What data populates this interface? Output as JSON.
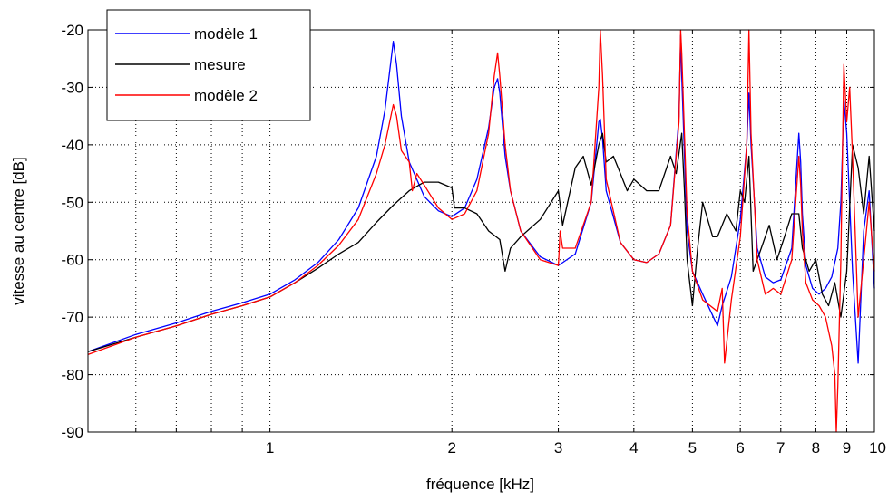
{
  "chart_data": {
    "type": "line",
    "title": "",
    "xlabel": "fréquence [kHz]",
    "ylabel": "vitesse au centre [dB]",
    "x_scale": "log",
    "xlim": [
      0.5,
      10
    ],
    "ylim": [
      -90,
      -20
    ],
    "x_ticks": [
      {
        "value": 1,
        "label": "1"
      },
      {
        "value": 2,
        "label": "2"
      },
      {
        "value": 3,
        "label": "3"
      },
      {
        "value": 4,
        "label": "4"
      },
      {
        "value": 5,
        "label": "5"
      },
      {
        "value": 6,
        "label": "6"
      },
      {
        "value": 7,
        "label": "7"
      },
      {
        "value": 8,
        "label": "8"
      },
      {
        "value": 9,
        "label": "9"
      },
      {
        "value": 10,
        "label": "10"
      }
    ],
    "x_minor_grid": [
      0.6,
      0.7,
      0.8,
      0.9
    ],
    "y_ticks": [
      {
        "value": -20,
        "label": "-20"
      },
      {
        "value": -30,
        "label": "-30"
      },
      {
        "value": -40,
        "label": "-40"
      },
      {
        "value": -50,
        "label": "-50"
      },
      {
        "value": -60,
        "label": "-60"
      },
      {
        "value": -70,
        "label": "-70"
      },
      {
        "value": -80,
        "label": "-80"
      },
      {
        "value": -90,
        "label": "-90"
      }
    ],
    "grid": true,
    "legend_position": "top-left",
    "series": [
      {
        "name": "modèle 1",
        "color": "#0000ff",
        "x": [
          0.5,
          0.6,
          0.7,
          0.8,
          0.9,
          1.0,
          1.1,
          1.2,
          1.3,
          1.4,
          1.5,
          1.55,
          1.6,
          1.62,
          1.65,
          1.7,
          1.8,
          1.9,
          2.0,
          2.1,
          2.2,
          2.3,
          2.35,
          2.38,
          2.4,
          2.45,
          2.5,
          2.6,
          2.8,
          3.0,
          3.2,
          3.4,
          3.5,
          3.52,
          3.55,
          3.6,
          3.8,
          4.0,
          4.2,
          4.4,
          4.6,
          4.75,
          4.78,
          4.8,
          4.9,
          5.0,
          5.2,
          5.5,
          5.6,
          5.8,
          6.0,
          6.15,
          6.2,
          6.25,
          6.4,
          6.6,
          6.8,
          7.0,
          7.3,
          7.5,
          7.55,
          7.6,
          7.7,
          7.9,
          8.1,
          8.3,
          8.5,
          8.7,
          8.8,
          8.85,
          8.9,
          9.0,
          9.2,
          9.4,
          9.6,
          9.8,
          10.0
        ],
        "y": [
          -76,
          -73,
          -71,
          -69,
          -67.5,
          -66,
          -63.5,
          -60.5,
          -56.5,
          -51,
          -42,
          -34,
          -22,
          -26,
          -35,
          -43,
          -49,
          -51.5,
          -52.5,
          -51,
          -46,
          -37,
          -30,
          -28.5,
          -31,
          -42,
          -48,
          -55,
          -59.5,
          -61,
          -59,
          -50,
          -36,
          -35.5,
          -39,
          -48,
          -57,
          -60,
          -60.5,
          -59,
          -54,
          -35,
          -21,
          -28,
          -55,
          -62,
          -66,
          -71.5,
          -68,
          -63,
          -53,
          -40,
          -31,
          -40,
          -58,
          -63,
          -64,
          -63.5,
          -58,
          -38,
          -43,
          -52,
          -61,
          -65,
          -66,
          -65,
          -63,
          -58,
          -50,
          -42,
          -32,
          -38,
          -62,
          -78,
          -55,
          -48,
          -65
        ]
      },
      {
        "name": "mesure",
        "color": "#000000",
        "x": [
          0.5,
          0.6,
          0.7,
          0.8,
          0.9,
          1.0,
          1.1,
          1.2,
          1.3,
          1.4,
          1.5,
          1.6,
          1.7,
          1.8,
          1.9,
          2.0,
          2.02,
          2.1,
          2.2,
          2.3,
          2.4,
          2.45,
          2.5,
          2.55,
          2.6,
          2.8,
          3.0,
          3.05,
          3.2,
          3.3,
          3.4,
          3.5,
          3.55,
          3.6,
          3.7,
          3.8,
          3.9,
          4.0,
          4.2,
          4.4,
          4.6,
          4.7,
          4.8,
          4.85,
          4.9,
          5.0,
          5.1,
          5.2,
          5.4,
          5.5,
          5.7,
          5.9,
          6.0,
          6.1,
          6.2,
          6.3,
          6.5,
          6.7,
          6.9,
          7.1,
          7.3,
          7.5,
          7.6,
          7.8,
          8.0,
          8.2,
          8.4,
          8.6,
          8.8,
          9.0,
          9.2,
          9.4,
          9.6,
          9.8,
          10.0
        ],
        "y": [
          -76,
          -73.5,
          -71.5,
          -69.5,
          -68,
          -66.5,
          -64,
          -61.5,
          -59,
          -57,
          -53.5,
          -50.5,
          -48,
          -46.5,
          -46.5,
          -47.5,
          -51,
          -51,
          -52,
          -55,
          -56.5,
          -62,
          -58,
          -57,
          -56,
          -53,
          -48,
          -54,
          -44,
          -42,
          -47,
          -40,
          -38,
          -43,
          -42,
          -45,
          -48,
          -46,
          -48,
          -48,
          -42,
          -45,
          -38,
          -48,
          -60,
          -68,
          -58,
          -50,
          -56,
          -56,
          -52,
          -55,
          -48,
          -50,
          -42,
          -62,
          -58,
          -54,
          -60,
          -56,
          -52,
          -52,
          -58,
          -62,
          -60,
          -66,
          -68,
          -64,
          -70,
          -62,
          -40,
          -44,
          -52,
          -42,
          -55
        ]
      },
      {
        "name": "modèle 2",
        "color": "#ff0000",
        "x": [
          0.5,
          0.6,
          0.7,
          0.8,
          0.9,
          1.0,
          1.1,
          1.2,
          1.3,
          1.4,
          1.5,
          1.55,
          1.6,
          1.62,
          1.65,
          1.7,
          1.72,
          1.75,
          1.8,
          1.9,
          2.0,
          2.1,
          2.2,
          2.3,
          2.35,
          2.38,
          2.4,
          2.45,
          2.5,
          2.6,
          2.8,
          3.0,
          3.02,
          3.05,
          3.2,
          3.4,
          3.5,
          3.52,
          3.55,
          3.6,
          3.8,
          4.0,
          4.2,
          4.4,
          4.6,
          4.75,
          4.78,
          4.8,
          4.9,
          5.0,
          5.2,
          5.5,
          5.6,
          5.65,
          5.8,
          6.0,
          6.15,
          6.2,
          6.25,
          6.4,
          6.6,
          6.8,
          7.0,
          7.3,
          7.5,
          7.55,
          7.6,
          7.7,
          7.9,
          8.1,
          8.3,
          8.5,
          8.6,
          8.65,
          8.7,
          8.8,
          8.9,
          9.0,
          9.1,
          9.2,
          9.4,
          9.6,
          9.8,
          10.0
        ],
        "y": [
          -76.5,
          -73.5,
          -71.5,
          -69.5,
          -68,
          -66.5,
          -64,
          -61,
          -57.5,
          -53,
          -45,
          -40,
          -33,
          -35,
          -41,
          -43,
          -48,
          -45,
          -47,
          -51,
          -53,
          -52,
          -48,
          -38,
          -28,
          -24,
          -28,
          -40,
          -48,
          -55,
          -60,
          -61,
          -55,
          -58,
          -58,
          -50,
          -30,
          -20,
          -28,
          -46,
          -57,
          -60,
          -60.5,
          -59,
          -54,
          -36,
          -20,
          -24,
          -52,
          -62,
          -67,
          -69,
          -65,
          -78,
          -67,
          -56,
          -40,
          -20,
          -38,
          -60,
          -66,
          -65,
          -66,
          -60,
          -42,
          -47,
          -55,
          -64,
          -67,
          -68,
          -70,
          -75,
          -80,
          -90,
          -82,
          -60,
          -26,
          -36,
          -30,
          -42,
          -70,
          -60,
          -50,
          -62
        ]
      }
    ]
  }
}
